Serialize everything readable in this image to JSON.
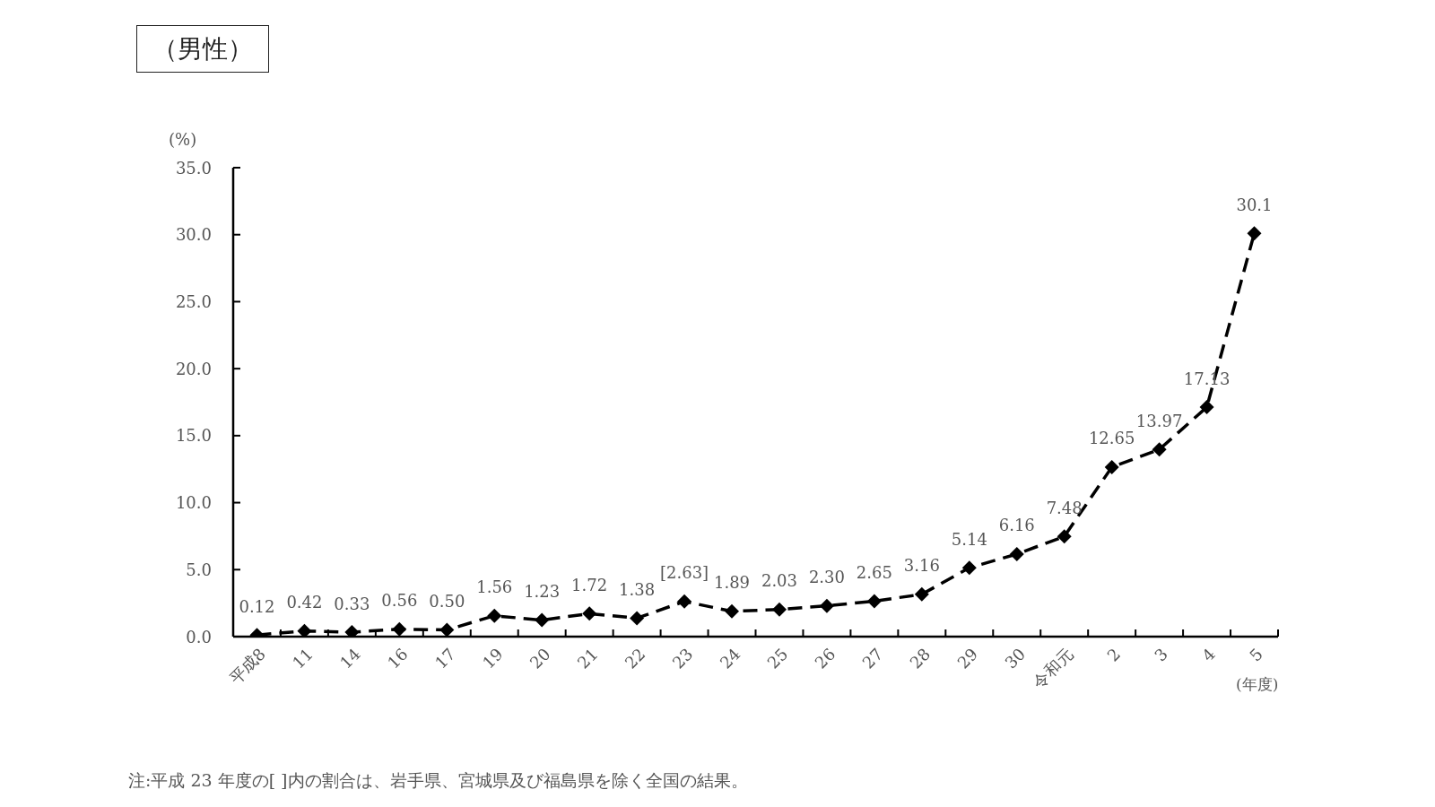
{
  "chart_data": {
    "type": "line",
    "title": "（男性）",
    "ylabel": "(%)",
    "xlabel": "(年度)",
    "annotations": [
      "注:平成 23 年度の[ ]内の割合は、岩手県、宮城県及び福島県を除く全国の結果。"
    ],
    "categories": [
      "平成8",
      "11",
      "14",
      "16",
      "17",
      "19",
      "20",
      "21",
      "22",
      "23",
      "24",
      "25",
      "26",
      "27",
      "28",
      "29",
      "30",
      "令和元",
      "2",
      "3",
      "4",
      "5"
    ],
    "values": [
      0.12,
      0.42,
      0.33,
      0.56,
      0.5,
      1.56,
      1.23,
      1.72,
      1.38,
      2.63,
      1.89,
      2.03,
      2.3,
      2.65,
      3.16,
      5.14,
      6.16,
      7.48,
      12.65,
      13.97,
      17.13,
      30.1
    ],
    "value_labels": [
      "0.12",
      "0.42",
      "0.33",
      "0.56",
      "0.50",
      "1.56",
      "1.23",
      "1.72",
      "1.38",
      "[2.63]",
      "1.89",
      "2.03",
      "2.30",
      "2.65",
      "3.16",
      "5.14",
      "6.16",
      "7.48",
      "12.65",
      "13.97",
      "17.13",
      "30.1"
    ],
    "color": "#000000",
    "ylim": [
      0,
      35
    ],
    "yticks": [
      {
        "value": 0,
        "label": "0.0"
      },
      {
        "value": 5,
        "label": "5.0"
      },
      {
        "value": 10,
        "label": "10.0"
      },
      {
        "value": 15,
        "label": "15.0"
      },
      {
        "value": 20,
        "label": "20.0"
      },
      {
        "value": 25,
        "label": "25.0"
      },
      {
        "value": 30,
        "label": "30.0"
      },
      {
        "value": 35,
        "label": "35.0"
      }
    ],
    "marker": "diamond",
    "line_style": "dashed"
  }
}
